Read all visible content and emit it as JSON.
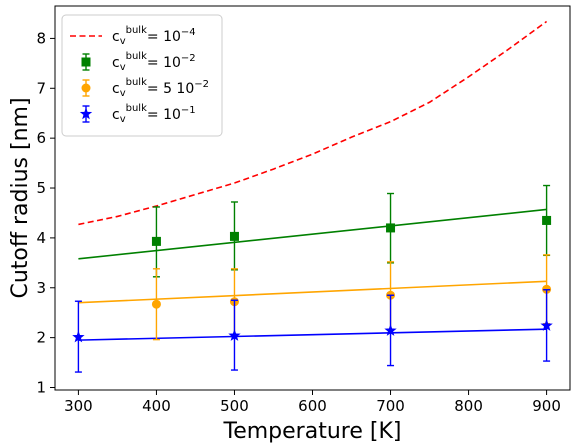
{
  "chart_data": {
    "type": "line",
    "xlabel": "Temperature [K]",
    "ylabel": "Cutoff radius [nm]",
    "xlim": [
      270,
      930
    ],
    "ylim": [
      0.95,
      8.65
    ],
    "xticks": [
      300,
      400,
      500,
      600,
      700,
      800,
      900
    ],
    "yticks": [
      1,
      2,
      3,
      4,
      5,
      6,
      7,
      8
    ],
    "grid": false,
    "legend_position": "top-left",
    "theory": [
      {
        "legend": "c_v^bulk= 10^-4",
        "legend_base": "c",
        "legend_sub": "v",
        "legend_sup": "bulk",
        "legend_eq": "= 10",
        "legend_exp": "−4",
        "color": "#ff0000",
        "style": "dashed",
        "x": [
          300,
          350,
          400,
          450,
          500,
          550,
          600,
          650,
          700,
          750,
          800,
          850,
          900
        ],
        "y": [
          4.27,
          4.43,
          4.64,
          4.87,
          5.1,
          5.38,
          5.68,
          6.02,
          6.33,
          6.72,
          7.23,
          7.77,
          8.34
        ]
      },
      {
        "color": "#008000",
        "style": "solid",
        "x": [
          300,
          900
        ],
        "y": [
          3.58,
          4.57
        ]
      },
      {
        "color": "#ffa500",
        "style": "solid",
        "x": [
          300,
          900
        ],
        "y": [
          2.7,
          3.13
        ]
      },
      {
        "color": "#0000ff",
        "style": "solid",
        "x": [
          300,
          900
        ],
        "y": [
          1.95,
          2.17
        ]
      }
    ],
    "series": [
      {
        "legend": "c_v^bulk= 10^-2",
        "legend_base": "c",
        "legend_sub": "v",
        "legend_sup": "bulk",
        "legend_eq": "= 10",
        "legend_exp": "−2",
        "color": "#008000",
        "marker": "square",
        "x": [
          400,
          500,
          700,
          900
        ],
        "y": [
          3.93,
          4.03,
          4.2,
          4.35
        ],
        "err_low": [
          3.22,
          3.36,
          3.5,
          3.65
        ],
        "err_high": [
          4.62,
          4.72,
          4.89,
          5.05
        ]
      },
      {
        "legend": "c_v^bulk= 5 10^-2",
        "legend_base": "c",
        "legend_sub": "v",
        "legend_sup": "bulk",
        "legend_eq": "= 5 10",
        "legend_exp": "−2",
        "color": "#ffa500",
        "marker": "circle",
        "x": [
          400,
          500,
          700,
          900
        ],
        "y": [
          2.67,
          2.72,
          2.85,
          2.97
        ],
        "err_low": [
          1.96,
          2.05,
          2.17,
          2.28
        ],
        "err_high": [
          3.38,
          3.38,
          3.52,
          3.66
        ]
      },
      {
        "legend": "c_v^bulk= 10^-1",
        "legend_base": "c",
        "legend_sub": "v",
        "legend_sup": "bulk",
        "legend_eq": "= 10",
        "legend_exp": "−1",
        "color": "#0000ff",
        "marker": "star",
        "x": [
          300,
          500,
          700,
          900
        ],
        "y": [
          2.01,
          2.04,
          2.14,
          2.24
        ],
        "err_low": [
          1.31,
          1.35,
          1.44,
          1.53
        ],
        "err_high": [
          2.73,
          2.75,
          2.85,
          2.96
        ]
      }
    ]
  }
}
